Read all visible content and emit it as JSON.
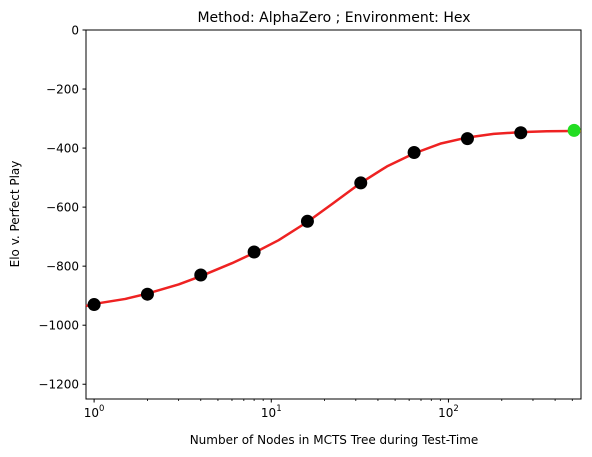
{
  "chart_data": {
    "type": "scatter",
    "title": "Method: AlphaZero ; Environment: Hex",
    "xlabel": "Number of Nodes in MCTS Tree during Test-Time",
    "ylabel": "Elo v. Perfect Play",
    "xscale": "log",
    "xlim": [
      0.9,
      560
    ],
    "ylim": [
      -1250,
      0
    ],
    "grid": false,
    "legend": "none",
    "x_ticks": [
      {
        "value": 1,
        "base": "10",
        "exp": "0"
      },
      {
        "value": 10,
        "base": "10",
        "exp": "1"
      },
      {
        "value": 100,
        "base": "10",
        "exp": "2"
      }
    ],
    "y_ticks": [
      {
        "value": 0,
        "label": "0"
      },
      {
        "value": -200,
        "label": "−200"
      },
      {
        "value": -400,
        "label": "−400"
      },
      {
        "value": -600,
        "label": "−600"
      },
      {
        "value": -800,
        "label": "−800"
      },
      {
        "value": -1000,
        "label": "−1000"
      },
      {
        "value": -1200,
        "label": "−1200"
      }
    ],
    "series": [
      {
        "marker_color": "#000000",
        "x": [
          1,
          2,
          4,
          8,
          16,
          32,
          64,
          128,
          256
        ],
        "y": [
          -930,
          -895,
          -830,
          -752,
          -648,
          -518,
          -415,
          -368,
          -348
        ]
      },
      {
        "marker_color": "#22dd22",
        "x": [
          512
        ],
        "y": [
          -340
        ]
      }
    ],
    "fit_curve": {
      "color": "#ee2222",
      "x": [
        0.9,
        1,
        1.5,
        2,
        3,
        4,
        6,
        8,
        11,
        16,
        22,
        32,
        45,
        64,
        90,
        128,
        180,
        256,
        360,
        512,
        560
      ],
      "y": [
        -935,
        -928,
        -911,
        -893,
        -862,
        -834,
        -790,
        -755,
        -712,
        -650,
        -590,
        -518,
        -462,
        -418,
        -385,
        -364,
        -352,
        -346,
        -343,
        -342,
        -342
      ]
    }
  }
}
